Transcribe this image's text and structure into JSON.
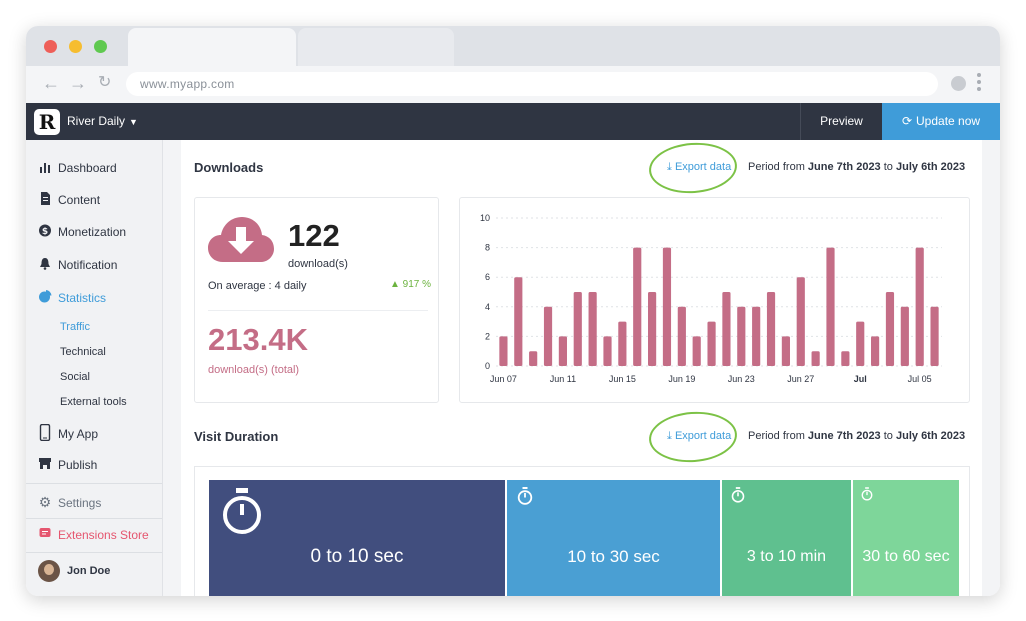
{
  "browser": {
    "url": "www.myapp.com"
  },
  "app": {
    "name": "River Daily",
    "logo_letter": "R",
    "preview_label": "Preview",
    "update_label": "Update now"
  },
  "sidebar": {
    "items": [
      {
        "label": "Dashboard",
        "icon": "bar-chart-icon"
      },
      {
        "label": "Content",
        "icon": "document-icon"
      },
      {
        "label": "Monetization",
        "icon": "dollar-icon"
      },
      {
        "label": "Notification",
        "icon": "bell-icon"
      },
      {
        "label": "Statistics",
        "icon": "pie-chart-icon"
      }
    ],
    "statistics_sub": [
      "Traffic",
      "Technical",
      "Social",
      "External tools"
    ],
    "items2": [
      {
        "label": "My App",
        "icon": "phone-icon"
      },
      {
        "label": "Publish",
        "icon": "store-icon"
      }
    ],
    "settings_label": "Settings",
    "extensions_label": "Extensions Store",
    "user_name": "Jon Doe",
    "colors": {
      "active": "#3f9cd9",
      "extensions": "#e5566f"
    }
  },
  "downloads": {
    "title": "Downloads",
    "export_label": "Export data",
    "period_prefix": "Period from",
    "period_from": "June 7th 2023",
    "period_to_word": "to",
    "period_to": "July 6th 2023",
    "count": "122",
    "count_label": "download(s)",
    "average": "On average : 4 daily",
    "growth": "▲ 917 %",
    "total": "213.4K",
    "total_label": "download(s) (total)"
  },
  "chart_data": {
    "type": "bar",
    "x_ticks": [
      "Jun 07",
      "Jun 11",
      "Jun 15",
      "Jun 19",
      "Jun 23",
      "Jun 27",
      "Jul",
      "Jul 05"
    ],
    "values": [
      2,
      6,
      1,
      4,
      2,
      5,
      5,
      2,
      3,
      8,
      5,
      8,
      4,
      2,
      3,
      5,
      4,
      4,
      5,
      2,
      6,
      1,
      8,
      1,
      3,
      2,
      5,
      4,
      8,
      4
    ],
    "ylim": [
      0,
      10
    ],
    "y_ticks": [
      0,
      2,
      4,
      6,
      8,
      10
    ],
    "color": "#c46d86",
    "grid": true
  },
  "visit_duration": {
    "title": "Visit Duration",
    "export_label": "Export data",
    "period_prefix": "Period from",
    "period_from": "June 7th 2023",
    "period_to_word": "to",
    "period_to": "July 6th 2023",
    "tiles": [
      {
        "label": "0 to 10 sec",
        "color": "#414e7e"
      },
      {
        "label": "10 to 30 sec",
        "color": "#4a9fd3"
      },
      {
        "label": "3 to 10 min",
        "color": "#5fc08f"
      },
      {
        "label": "30 to 60 sec",
        "color": "#7ed69a"
      }
    ]
  }
}
